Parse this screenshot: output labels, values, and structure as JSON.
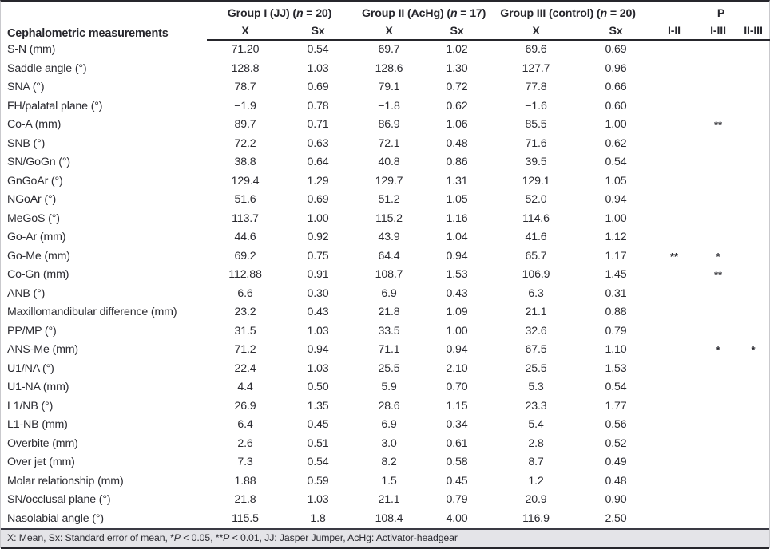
{
  "meta": {
    "text_color": "#2b2b31",
    "rule_color": "#26262c",
    "footnote_background": "#e4e4e8"
  },
  "table": {
    "measurement_header": "Cephalometric measurements",
    "groups": [
      {
        "pre": "Group I (JJ) (",
        "n": "n",
        "post": " = 20)"
      },
      {
        "pre": "Group II (AcHg) (",
        "n": "n",
        "post": " = 17)"
      },
      {
        "pre": "Group III (control) (",
        "n": "n",
        "post": " = 20)"
      }
    ],
    "p_header": "P",
    "sub_headers": {
      "mean": "X",
      "se": "Sx"
    },
    "p_sub_headers": [
      "I-II",
      "I-III",
      "II-III"
    ],
    "rows": [
      {
        "label": "S-N (mm)",
        "g1": [
          "71.20",
          "0.54"
        ],
        "g2": [
          "69.7",
          "1.02"
        ],
        "g3": [
          "69.6",
          "0.69"
        ],
        "p": [
          "",
          "",
          ""
        ]
      },
      {
        "label": "Saddle angle (°)",
        "g1": [
          "128.8",
          "1.03"
        ],
        "g2": [
          "128.6",
          "1.30"
        ],
        "g3": [
          "127.7",
          "0.96"
        ],
        "p": [
          "",
          "",
          ""
        ]
      },
      {
        "label": "SNA (°)",
        "g1": [
          "78.7",
          "0.69"
        ],
        "g2": [
          "79.1",
          "0.72"
        ],
        "g3": [
          "77.8",
          "0.66"
        ],
        "p": [
          "",
          "",
          ""
        ]
      },
      {
        "label": "FH/palatal plane (°)",
        "g1": [
          "−1.9",
          "0.78"
        ],
        "g2": [
          "−1.8",
          "0.62"
        ],
        "g3": [
          "−1.6",
          "0.60"
        ],
        "p": [
          "",
          "",
          ""
        ]
      },
      {
        "label": "Co-A (mm)",
        "g1": [
          "89.7",
          "0.71"
        ],
        "g2": [
          "86.9",
          "1.06"
        ],
        "g3": [
          "85.5",
          "1.00"
        ],
        "p": [
          "",
          "**",
          ""
        ]
      },
      {
        "label": "SNB (°)",
        "g1": [
          "72.2",
          "0.63"
        ],
        "g2": [
          "72.1",
          "0.48"
        ],
        "g3": [
          "71.6",
          "0.62"
        ],
        "p": [
          "",
          "",
          ""
        ]
      },
      {
        "label": "SN/GoGn (°)",
        "g1": [
          "38.8",
          "0.64"
        ],
        "g2": [
          "40.8",
          "0.86"
        ],
        "g3": [
          "39.5",
          "0.54"
        ],
        "p": [
          "",
          "",
          ""
        ]
      },
      {
        "label": "GnGoAr (°)",
        "g1": [
          "129.4",
          "1.29"
        ],
        "g2": [
          "129.7",
          "1.31"
        ],
        "g3": [
          "129.1",
          "1.05"
        ],
        "p": [
          "",
          "",
          ""
        ]
      },
      {
        "label": "NGoAr (°)",
        "g1": [
          "51.6",
          "0.69"
        ],
        "g2": [
          "51.2",
          "1.05"
        ],
        "g3": [
          "52.0",
          "0.94"
        ],
        "p": [
          "",
          "",
          ""
        ]
      },
      {
        "label": "MeGoS (°)",
        "g1": [
          "113.7",
          "1.00"
        ],
        "g2": [
          "115.2",
          "1.16"
        ],
        "g3": [
          "114.6",
          "1.00"
        ],
        "p": [
          "",
          "",
          ""
        ]
      },
      {
        "label": "Go-Ar (mm)",
        "g1": [
          "44.6",
          "0.92"
        ],
        "g2": [
          "43.9",
          "1.04"
        ],
        "g3": [
          "41.6",
          "1.12"
        ],
        "p": [
          "",
          "",
          ""
        ]
      },
      {
        "label": "Go-Me (mm)",
        "g1": [
          "69.2",
          "0.75"
        ],
        "g2": [
          "64.4",
          "0.94"
        ],
        "g3": [
          "65.7",
          "1.17"
        ],
        "p": [
          "**",
          "*",
          ""
        ]
      },
      {
        "label": "Co-Gn (mm)",
        "g1": [
          "112.88",
          "0.91"
        ],
        "g2": [
          "108.7",
          "1.53"
        ],
        "g3": [
          "106.9",
          "1.45"
        ],
        "p": [
          "",
          "**",
          ""
        ]
      },
      {
        "label": "ANB (°)",
        "g1": [
          "6.6",
          "0.30"
        ],
        "g2": [
          "6.9",
          "0.43"
        ],
        "g3": [
          "6.3",
          "0.31"
        ],
        "p": [
          "",
          "",
          ""
        ]
      },
      {
        "label": "Maxillomandibular difference (mm)",
        "g1": [
          "23.2",
          "0.43"
        ],
        "g2": [
          "21.8",
          "1.09"
        ],
        "g3": [
          "21.1",
          "0.88"
        ],
        "p": [
          "",
          "",
          ""
        ]
      },
      {
        "label": "PP/MP (°)",
        "g1": [
          "31.5",
          "1.03"
        ],
        "g2": [
          "33.5",
          "1.00"
        ],
        "g3": [
          "32.6",
          "0.79"
        ],
        "p": [
          "",
          "",
          ""
        ]
      },
      {
        "label": "ANS-Me (mm)",
        "g1": [
          "71.2",
          "0.94"
        ],
        "g2": [
          "71.1",
          "0.94"
        ],
        "g3": [
          "67.5",
          "1.10"
        ],
        "p": [
          "",
          "*",
          "*"
        ]
      },
      {
        "label": "U1/NA (°)",
        "g1": [
          "22.4",
          "1.03"
        ],
        "g2": [
          "25.5",
          "2.10"
        ],
        "g3": [
          "25.5",
          "1.53"
        ],
        "p": [
          "",
          "",
          ""
        ]
      },
      {
        "label": "U1-NA (mm)",
        "g1": [
          "4.4",
          "0.50"
        ],
        "g2": [
          "5.9",
          "0.70"
        ],
        "g3": [
          "5.3",
          "0.54"
        ],
        "p": [
          "",
          "",
          ""
        ]
      },
      {
        "label": "L1/NB (°)",
        "g1": [
          "26.9",
          "1.35"
        ],
        "g2": [
          "28.6",
          "1.15"
        ],
        "g3": [
          "23.3",
          "1.77"
        ],
        "p": [
          "",
          "",
          ""
        ]
      },
      {
        "label": "L1-NB (mm)",
        "g1": [
          "6.4",
          "0.45"
        ],
        "g2": [
          "6.9",
          "0.34"
        ],
        "g3": [
          "5.4",
          "0.56"
        ],
        "p": [
          "",
          "",
          ""
        ]
      },
      {
        "label": "Overbite (mm)",
        "g1": [
          "2.6",
          "0.51"
        ],
        "g2": [
          "3.0",
          "0.61"
        ],
        "g3": [
          "2.8",
          "0.52"
        ],
        "p": [
          "",
          "",
          ""
        ]
      },
      {
        "label": "Over jet (mm)",
        "g1": [
          "7.3",
          "0.54"
        ],
        "g2": [
          "8.2",
          "0.58"
        ],
        "g3": [
          "8.7",
          "0.49"
        ],
        "p": [
          "",
          "",
          ""
        ]
      },
      {
        "label": "Molar relationship (mm)",
        "g1": [
          "1.88",
          "0.59"
        ],
        "g2": [
          "1.5",
          "0.45"
        ],
        "g3": [
          "1.2",
          "0.48"
        ],
        "p": [
          "",
          "",
          ""
        ]
      },
      {
        "label": "SN/occlusal plane (°)",
        "g1": [
          "21.8",
          "1.03"
        ],
        "g2": [
          "21.1",
          "0.79"
        ],
        "g3": [
          "20.9",
          "0.90"
        ],
        "p": [
          "",
          "",
          ""
        ]
      },
      {
        "label": "Nasolabial angle (°)",
        "g1": [
          "115.5",
          "1.8"
        ],
        "g2": [
          "108.4",
          "4.00"
        ],
        "g3": [
          "116.9",
          "2.50"
        ],
        "p": [
          "",
          "",
          ""
        ]
      }
    ]
  },
  "footnote": {
    "segments": [
      {
        "text": "X: Mean, Sx: Standard error of mean, *",
        "italic": false
      },
      {
        "text": "P",
        "italic": true
      },
      {
        "text": " < 0.05, **",
        "italic": false
      },
      {
        "text": "P",
        "italic": true
      },
      {
        "text": " < 0.01, JJ: Jasper Jumper, AcHg: Activator-headgear",
        "italic": false
      }
    ]
  }
}
